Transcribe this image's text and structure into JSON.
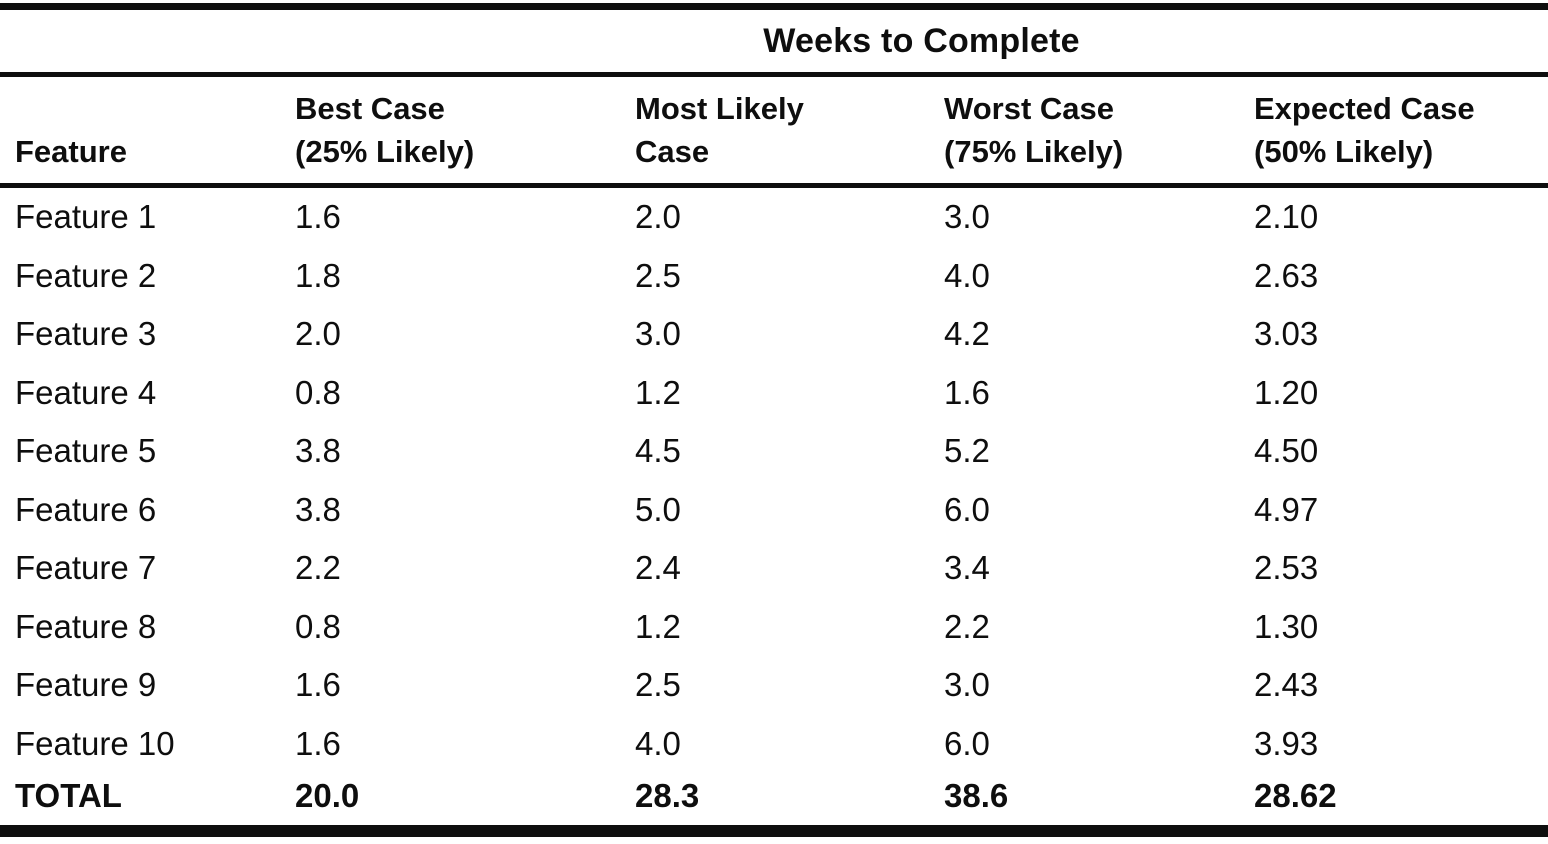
{
  "document": {
    "background_color": "#ffffff",
    "ink_color": "#0e0e0e"
  },
  "table": {
    "title": "Weeks to Complete",
    "columns": [
      {
        "id": "feature",
        "label": "Feature"
      },
      {
        "id": "best",
        "label": "Best Case\n(25% Likely)"
      },
      {
        "id": "most_likely",
        "label": "Most Likely\nCase"
      },
      {
        "id": "worst",
        "label": "Worst Case\n(75% Likely)"
      },
      {
        "id": "expected",
        "label": "Expected Case\n(50% Likely)"
      }
    ],
    "rows": [
      {
        "feature": "Feature 1",
        "best": "1.6",
        "most_likely": "2.0",
        "worst": "3.0",
        "expected": "2.10"
      },
      {
        "feature": "Feature 2",
        "best": "1.8",
        "most_likely": "2.5",
        "worst": "4.0",
        "expected": "2.63"
      },
      {
        "feature": "Feature 3",
        "best": "2.0",
        "most_likely": "3.0",
        "worst": "4.2",
        "expected": "3.03"
      },
      {
        "feature": "Feature 4",
        "best": "0.8",
        "most_likely": "1.2",
        "worst": "1.6",
        "expected": "1.20"
      },
      {
        "feature": "Feature 5",
        "best": "3.8",
        "most_likely": "4.5",
        "worst": "5.2",
        "expected": "4.50"
      },
      {
        "feature": "Feature 6",
        "best": "3.8",
        "most_likely": "5.0",
        "worst": "6.0",
        "expected": "4.97"
      },
      {
        "feature": "Feature 7",
        "best": "2.2",
        "most_likely": "2.4",
        "worst": "3.4",
        "expected": "2.53"
      },
      {
        "feature": "Feature 8",
        "best": "0.8",
        "most_likely": "1.2",
        "worst": "2.2",
        "expected": "1.30"
      },
      {
        "feature": "Feature 9",
        "best": "1.6",
        "most_likely": "2.5",
        "worst": "3.0",
        "expected": "2.43"
      },
      {
        "feature": "Feature 10",
        "best": "1.6",
        "most_likely": "4.0",
        "worst": "6.0",
        "expected": "3.93"
      }
    ],
    "total_row": {
      "feature": "TOTAL",
      "best": "20.0",
      "most_likely": "28.3",
      "worst": "38.6",
      "expected": "28.62"
    }
  }
}
